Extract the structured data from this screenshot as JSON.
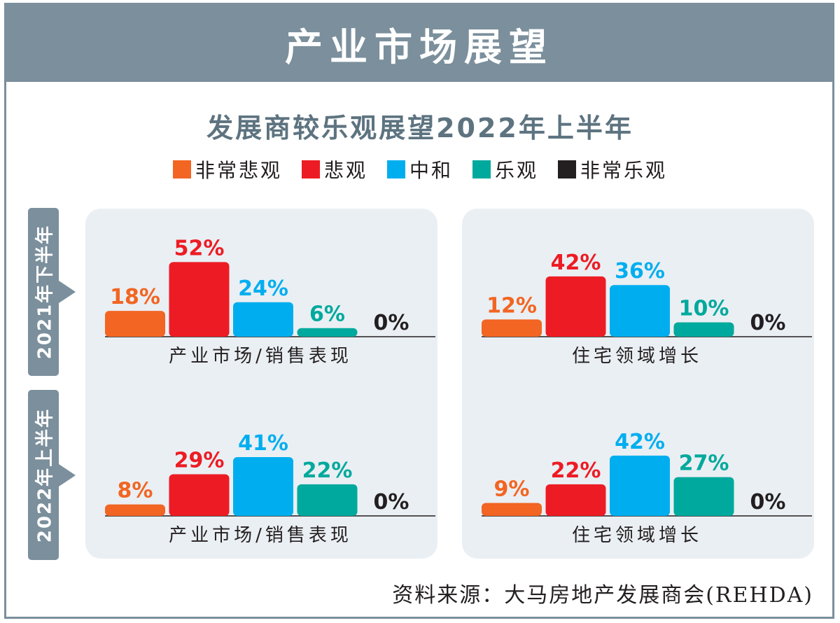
{
  "header": {
    "title": "产业市场展望"
  },
  "subtitle": "发展商较乐观展望2022年上半年",
  "legend": [
    {
      "label": "非常悲观",
      "color": "#f26522"
    },
    {
      "label": "悲观",
      "color": "#ed1c24"
    },
    {
      "label": "中和",
      "color": "#00aeef"
    },
    {
      "label": "乐观",
      "color": "#00a99d"
    },
    {
      "label": "非常乐观",
      "color": "#231f20"
    }
  ],
  "periods": [
    "2021年下半年",
    "2022年上半年"
  ],
  "source": "资料来源：大马房地产发展商会(REHDA)",
  "chart_data": [
    {
      "type": "bar",
      "period": "2021年下半年",
      "xlabel": "产业市场/销售表现",
      "categories": [
        "非常悲观",
        "悲观",
        "中和",
        "乐观",
        "非常乐观"
      ],
      "values": [
        18,
        52,
        24,
        6,
        0
      ],
      "labels": [
        "18%",
        "52%",
        "24%",
        "6%",
        "0%"
      ]
    },
    {
      "type": "bar",
      "period": "2021年下半年",
      "xlabel": "住宅领域增长",
      "categories": [
        "非常悲观",
        "悲观",
        "中和",
        "乐观",
        "非常乐观"
      ],
      "values": [
        12,
        42,
        36,
        10,
        0
      ],
      "labels": [
        "12%",
        "42%",
        "36%",
        "10%",
        "0%"
      ]
    },
    {
      "type": "bar",
      "period": "2022年上半年",
      "xlabel": "产业市场/销售表现",
      "categories": [
        "非常悲观",
        "悲观",
        "中和",
        "乐观",
        "非常乐观"
      ],
      "values": [
        8,
        29,
        41,
        22,
        0
      ],
      "labels": [
        "8%",
        "29%",
        "41%",
        "22%",
        "0%"
      ]
    },
    {
      "type": "bar",
      "period": "2022年上半年",
      "xlabel": "住宅领域增长",
      "categories": [
        "非常悲观",
        "悲观",
        "中和",
        "乐观",
        "非常乐观"
      ],
      "values": [
        9,
        22,
        42,
        27,
        0
      ],
      "labels": [
        "9%",
        "22%",
        "42%",
        "27%",
        "0%"
      ]
    }
  ]
}
